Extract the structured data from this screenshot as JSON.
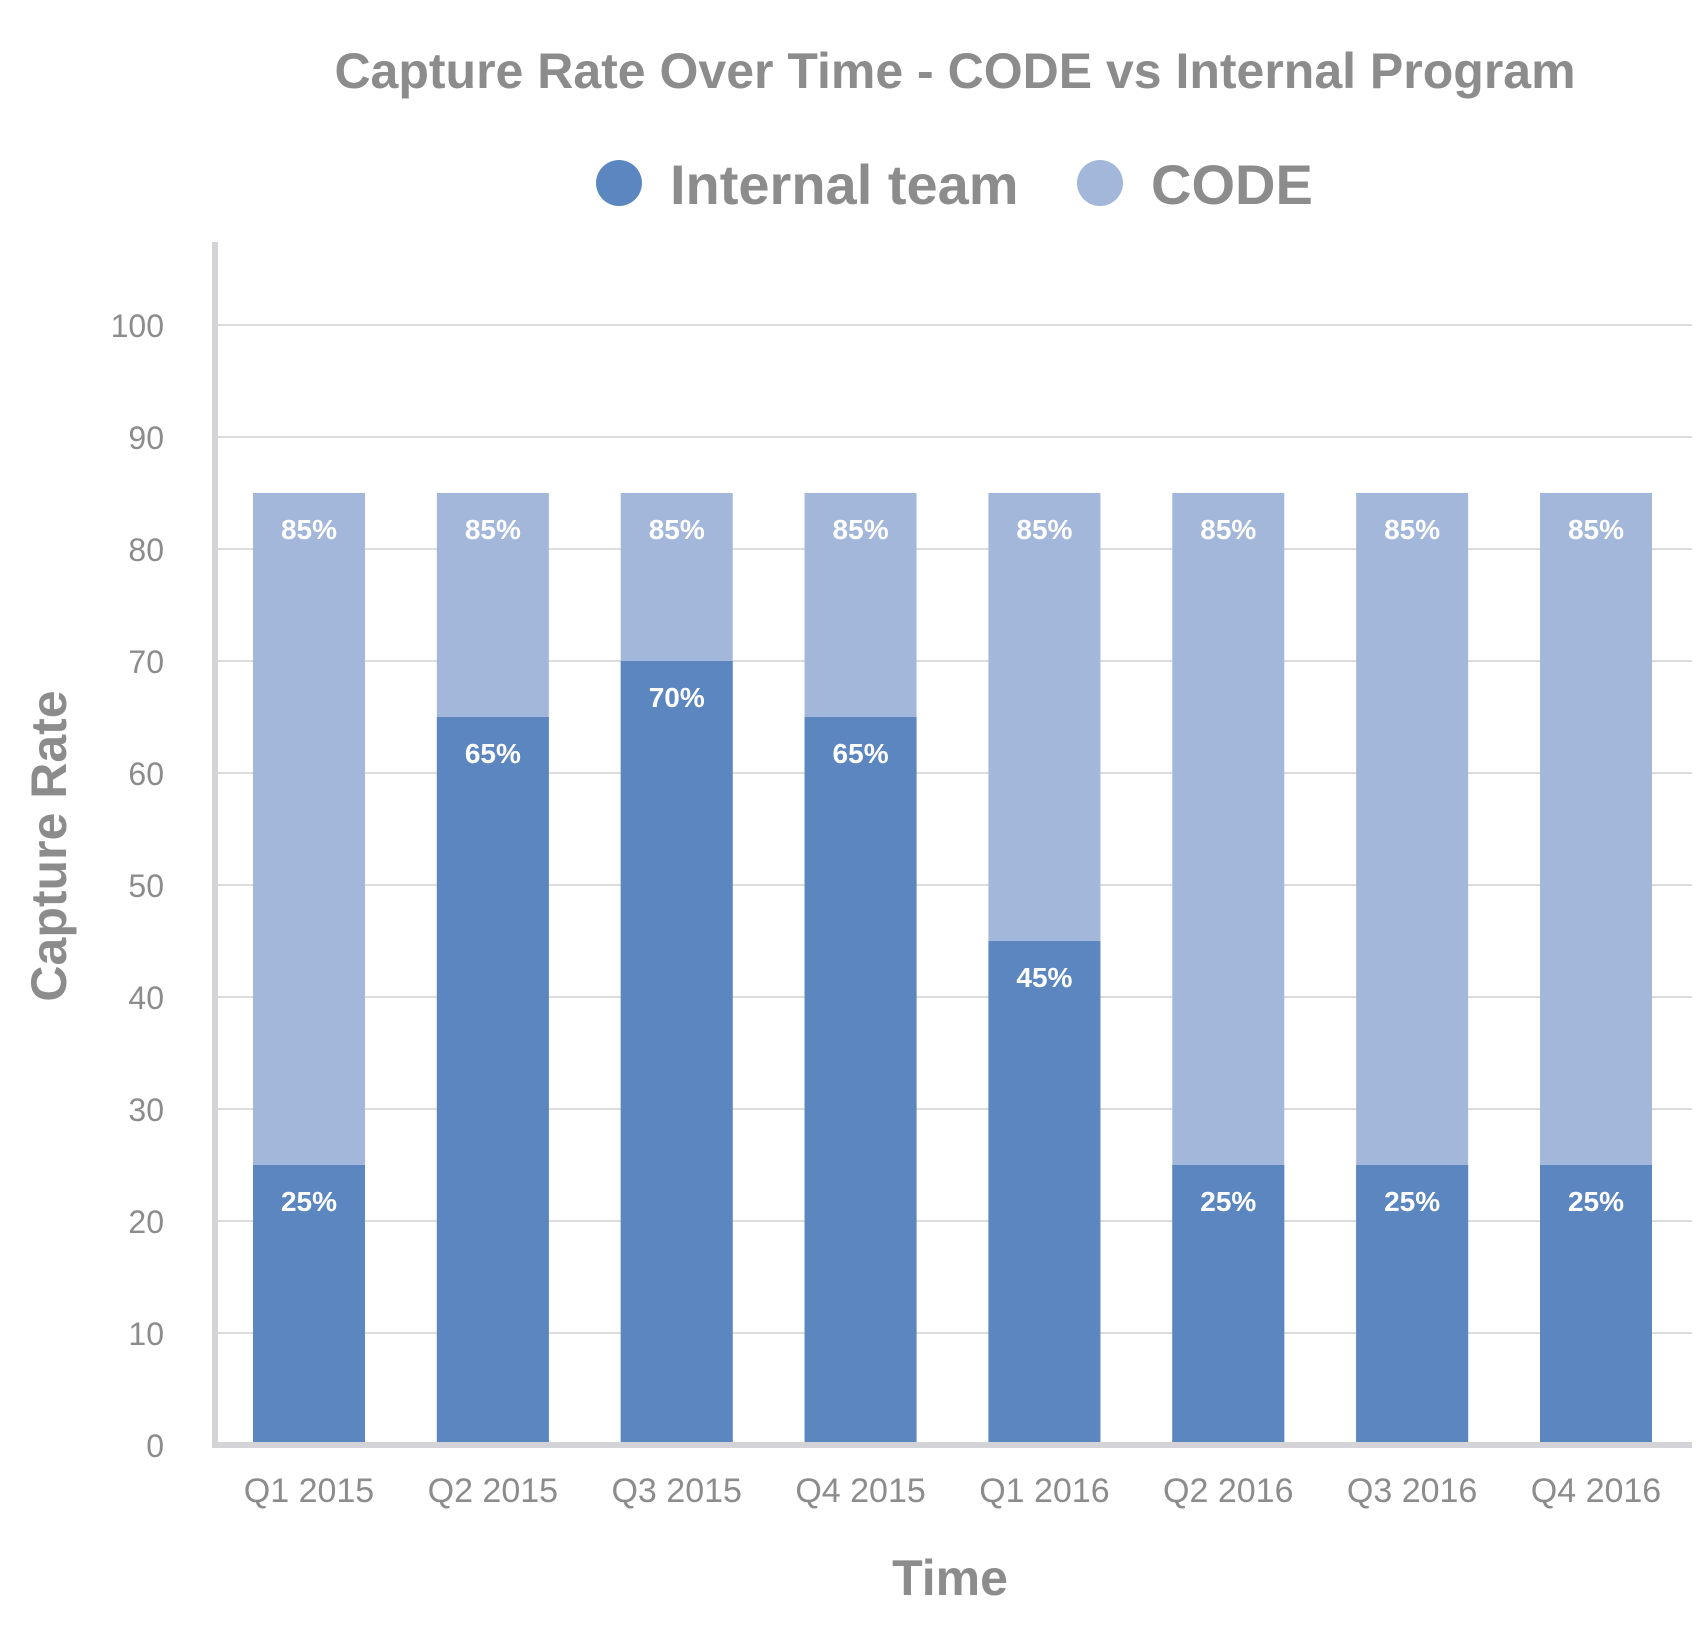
{
  "chart_data": {
    "type": "bar",
    "stacking": "overlay",
    "title": "Capture Rate Over Time - CODE vs Internal Program",
    "xlabel": "Time",
    "ylabel": "Capture Rate",
    "ylim": [
      0,
      100
    ],
    "yticks": [
      0,
      10,
      20,
      30,
      40,
      50,
      60,
      70,
      80,
      90,
      100
    ],
    "grid": true,
    "legend_position": "top",
    "categories": [
      "Q1 2015",
      "Q2 2015",
      "Q3 2015",
      "Q4 2015",
      "Q1 2016",
      "Q2 2016",
      "Q3 2016",
      "Q4 2016"
    ],
    "series": [
      {
        "name": "Internal team",
        "color": "#5b86c0",
        "values": [
          25,
          65,
          70,
          65,
          45,
          25,
          25,
          25
        ],
        "labels": [
          "25%",
          "65%",
          "70%",
          "65%",
          "45%",
          "25%",
          "25%",
          "25%"
        ]
      },
      {
        "name": "CODE",
        "color": "#a2b7d9",
        "values": [
          85,
          85,
          85,
          85,
          85,
          85,
          85,
          85
        ],
        "labels": [
          "85%",
          "85%",
          "85%",
          "85%",
          "85%",
          "85%",
          "85%",
          "85%"
        ]
      }
    ]
  }
}
